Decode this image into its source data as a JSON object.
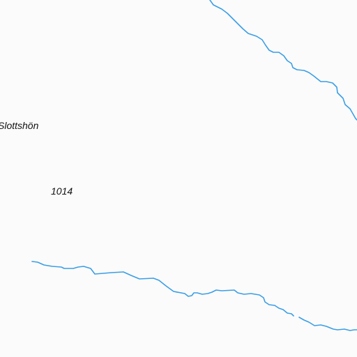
{
  "map": {
    "background_color": "#fbfbfb",
    "stream_color": "#3a9ee6",
    "labels": {
      "place": "Slottshön",
      "elevation": "1014"
    }
  }
}
